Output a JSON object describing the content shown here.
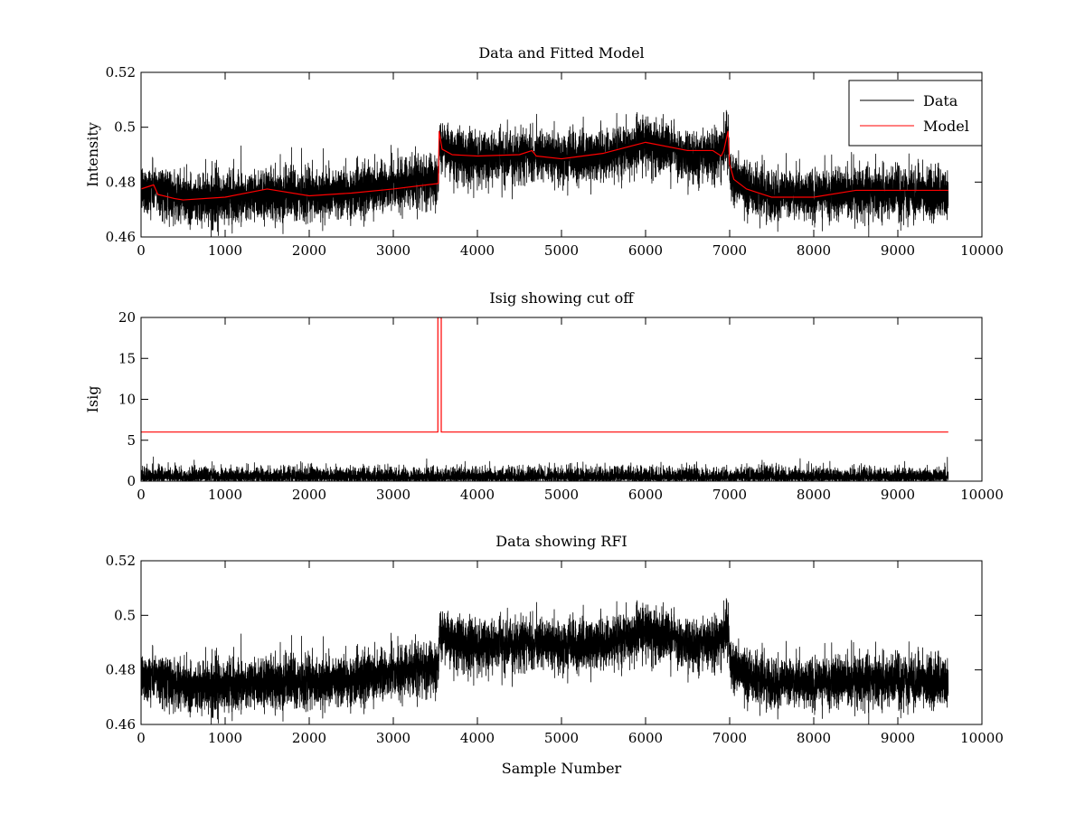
{
  "chart_data": [
    {
      "type": "line",
      "title": "Data and Fitted Model",
      "xlabel": "",
      "ylabel": "Intensity",
      "xlim": [
        0,
        10000
      ],
      "ylim": [
        0.46,
        0.52
      ],
      "xticks": [
        0,
        1000,
        2000,
        3000,
        4000,
        5000,
        6000,
        7000,
        8000,
        9000,
        10000
      ],
      "yticks": [
        0.46,
        0.48,
        0.5,
        0.52
      ],
      "xtick_labels": [
        "0",
        "1000",
        "2000",
        "3000",
        "4000",
        "5000",
        "6000",
        "7000",
        "8000",
        "9000",
        "10000"
      ],
      "ytick_labels": [
        "0.46",
        "0.48",
        "0.5",
        "0.52"
      ],
      "legend_position": "top-right",
      "series": [
        {
          "name": "Data",
          "color": "#000000",
          "noise": 0.0045,
          "spike_prob": 0.004,
          "spike_amplitude": 0.012,
          "baseline_x": [
            0,
            150,
            500,
            1000,
            1500,
            2000,
            2500,
            3000,
            3500,
            3540,
            3545,
            3700,
            4000,
            4600,
            5000,
            5500,
            6000,
            6500,
            6900,
            6980,
            7000,
            7020,
            7200,
            7500,
            8000,
            8500,
            9000,
            9600
          ],
          "baseline_y": [
            0.477,
            0.478,
            0.474,
            0.474,
            0.476,
            0.475,
            0.476,
            0.479,
            0.481,
            0.482,
            0.494,
            0.49,
            0.489,
            0.49,
            0.488,
            0.49,
            0.494,
            0.49,
            0.49,
            0.497,
            0.487,
            0.481,
            0.478,
            0.475,
            0.476,
            0.476,
            0.476,
            0.475
          ]
        },
        {
          "name": "Model",
          "color": "#ff0000",
          "x": [
            0,
            150,
            200,
            400,
            500,
            1000,
            1500,
            2000,
            2500,
            3000,
            3400,
            3535,
            3545,
            3580,
            3700,
            4000,
            4500,
            4650,
            4700,
            5000,
            5500,
            6000,
            6500,
            6800,
            6900,
            6930,
            6980,
            7000,
            7050,
            7200,
            7500,
            8000,
            8500,
            9000,
            9600
          ],
          "y": [
            0.4775,
            0.479,
            0.4755,
            0.474,
            0.4735,
            0.4745,
            0.4775,
            0.475,
            0.476,
            0.4775,
            0.479,
            0.4795,
            0.4985,
            0.492,
            0.49,
            0.4895,
            0.49,
            0.4915,
            0.4895,
            0.4885,
            0.4905,
            0.4945,
            0.4915,
            0.4915,
            0.4895,
            0.4915,
            0.4985,
            0.4865,
            0.481,
            0.4775,
            0.4745,
            0.4745,
            0.477,
            0.477,
            0.477
          ]
        }
      ]
    },
    {
      "type": "line",
      "title": "Isig showing cut off",
      "xlabel": "",
      "ylabel": "Isig",
      "xlim": [
        0,
        10000
      ],
      "ylim": [
        0,
        20
      ],
      "xticks": [
        0,
        1000,
        2000,
        3000,
        4000,
        5000,
        6000,
        7000,
        8000,
        9000,
        10000
      ],
      "yticks": [
        0,
        5,
        10,
        15,
        20
      ],
      "xtick_labels": [
        "0",
        "1000",
        "2000",
        "3000",
        "4000",
        "5000",
        "6000",
        "7000",
        "8000",
        "9000",
        "10000"
      ],
      "ytick_labels": [
        "0",
        "5",
        "10",
        "15",
        "20"
      ],
      "series": [
        {
          "color": "#000000",
          "noise_max": 3.5,
          "x_range": [
            0,
            9600
          ]
        },
        {
          "color": "#ff0000",
          "x": [
            0,
            3530,
            3530,
            3570,
            3570,
            9600
          ],
          "y": [
            6,
            6,
            20,
            20,
            6,
            6
          ]
        }
      ]
    },
    {
      "type": "line",
      "title": "Data showing RFI",
      "xlabel": "Sample Number",
      "ylabel": "",
      "xlim": [
        0,
        10000
      ],
      "ylim": [
        0.46,
        0.52
      ],
      "xticks": [
        0,
        1000,
        2000,
        3000,
        4000,
        5000,
        6000,
        7000,
        8000,
        9000,
        10000
      ],
      "yticks": [
        0.46,
        0.48,
        0.5,
        0.52
      ],
      "xtick_labels": [
        "0",
        "1000",
        "2000",
        "3000",
        "4000",
        "5000",
        "6000",
        "7000",
        "8000",
        "9000",
        "10000"
      ],
      "ytick_labels": [
        "0.46",
        "0.48",
        "0.5",
        "0.52"
      ],
      "series": [
        {
          "color": "#000000",
          "same_as": "Data"
        }
      ]
    }
  ]
}
